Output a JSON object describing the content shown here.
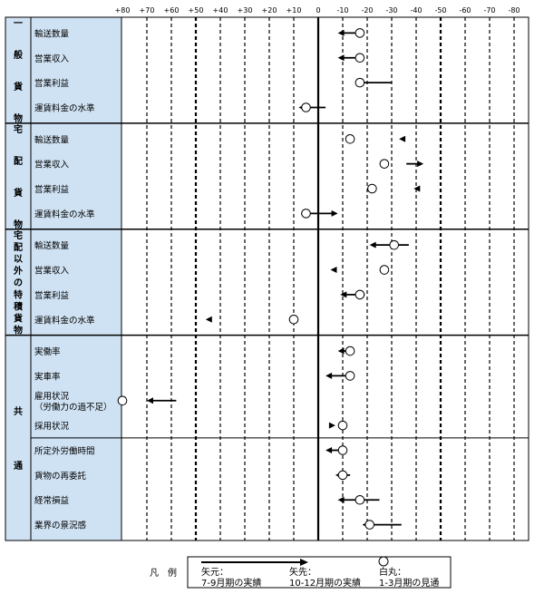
{
  "chart_data": {
    "type": "scatter",
    "x_ticks": [
      "+80",
      "+70",
      "+60",
      "+50",
      "+40",
      "+30",
      "+20",
      "+10",
      "0",
      "-10",
      "-20",
      "-30",
      "-40",
      "-50",
      "-60",
      "-70",
      "-80"
    ],
    "xlim": [
      80,
      -80
    ],
    "groups": [
      {
        "label": "一般貨物",
        "rows": [
          {
            "label": "輸送数量",
            "arrow_from": -18,
            "arrow_to": -8,
            "circle": -17
          },
          {
            "label": "営業収入",
            "arrow_from": -15,
            "arrow_to": -8,
            "circle": -17
          },
          {
            "label": "営業利益",
            "arrow_from": -30,
            "arrow_to": -16,
            "circle": -17
          },
          {
            "label": "運賃料金の水準",
            "arrow_from": -3,
            "arrow_to": 8,
            "circle": 5
          }
        ]
      },
      {
        "label": "宅配貨物",
        "rows": [
          {
            "label": "輸送数量",
            "arrow_from": -34,
            "arrow_to": -33,
            "circle": -13
          },
          {
            "label": "営業収入",
            "arrow_from": -36,
            "arrow_to": -43,
            "circle": -27
          },
          {
            "label": "営業利益",
            "arrow_from": -40,
            "arrow_to": -39,
            "circle": -22
          },
          {
            "label": "運賃料金の水準",
            "arrow_from": 7,
            "arrow_to": -8,
            "circle": 5
          }
        ]
      },
      {
        "label": "宅配以外の特積貨物",
        "rows": [
          {
            "label": "輸送数量",
            "arrow_from": -37,
            "arrow_to": -21,
            "circle": -31
          },
          {
            "label": "営業収入",
            "arrow_from": -6,
            "arrow_to": -5,
            "circle": -27
          },
          {
            "label": "営業利益",
            "arrow_from": -19,
            "arrow_to": -9,
            "circle": -17
          },
          {
            "label": "運賃料金の水準",
            "arrow_from": 45,
            "arrow_to": 46,
            "circle": 10
          }
        ]
      },
      {
        "label": "共通",
        "rows": [
          {
            "label": "実働率",
            "arrow_from": -13,
            "arrow_to": -8,
            "circle": -13
          },
          {
            "label": "実車率",
            "arrow_from": -13,
            "arrow_to": -3,
            "circle": -13
          },
          {
            "label": "雇用状況\n（労働力の過不足）",
            "arrow_from": 58,
            "arrow_to": 70,
            "circle": 80
          },
          {
            "label": "採用状況",
            "arrow_from": -6,
            "arrow_to": -7,
            "circle": -10
          },
          {
            "label": "所定外労働時間",
            "arrow_from": -10,
            "arrow_to": -3,
            "circle": -10
          },
          {
            "label": "貨物の再委託",
            "arrow_from": -13,
            "arrow_to": -7,
            "circle": -10
          },
          {
            "label": "経常損益",
            "arrow_from": -25,
            "arrow_to": -8,
            "circle": -17
          },
          {
            "label": "業界の景況感",
            "arrow_from": -34,
            "arrow_to": -18,
            "circle": -21
          }
        ]
      }
    ],
    "legend": {
      "prefix": "凡　例",
      "items": [
        {
          "label": "矢元：",
          "sub": "7-9月期の実績"
        },
        {
          "label": "矢先：",
          "sub": "10-12月期の実績"
        },
        {
          "label": "白丸：",
          "sub": "1-3月期の見通"
        }
      ]
    }
  },
  "colors": {
    "label_bg": "#cfe2f3",
    "ink": "#000000",
    "background": "#ffffff"
  }
}
